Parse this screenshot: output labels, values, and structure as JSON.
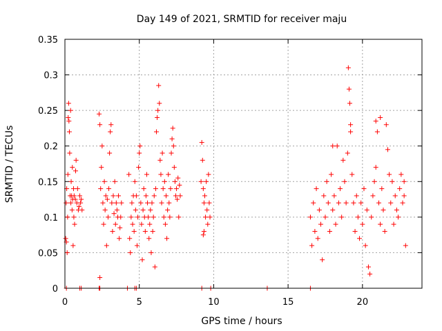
{
  "chart_data": {
    "type": "scatter",
    "title": "Day 149 of 2021, SRMTID for receiver maju",
    "xlabel": "GPS time / hours",
    "ylabel": "SRMTID / TECUs",
    "xlim": [
      0,
      24
    ],
    "ylim": [
      0,
      0.35
    ],
    "xticks": [
      0,
      5,
      10,
      15,
      20
    ],
    "yticks": [
      0,
      0.05,
      0.1,
      0.15,
      0.2,
      0.25,
      0.3,
      0.35
    ],
    "x_tick_labels": [
      "0",
      "5",
      "10",
      "15",
      "20"
    ],
    "y_tick_labels": [
      "0",
      "0.05",
      "0.1",
      "0.15",
      "0.2",
      "0.25",
      "0.3",
      "0.35"
    ],
    "grid": true,
    "marker": "+",
    "color": "#ff0000",
    "series": [
      {
        "name": "SRMTID",
        "points": [
          [
            0.05,
            0.07
          ],
          [
            0.08,
            0.12
          ],
          [
            0.1,
            0.065
          ],
          [
            0.12,
            0.14
          ],
          [
            0.15,
            0.05
          ],
          [
            0.18,
            0.1
          ],
          [
            0.2,
            0.16
          ],
          [
            0.22,
            0.24
          ],
          [
            0.25,
            0.26
          ],
          [
            0.27,
            0.235
          ],
          [
            0.3,
            0.22
          ],
          [
            0.32,
            0.19
          ],
          [
            0.35,
            0.13
          ],
          [
            0.38,
            0.25
          ],
          [
            0.4,
            0.12
          ],
          [
            0.42,
            0.15
          ],
          [
            0.45,
            0.13
          ],
          [
            0.48,
            0.11
          ],
          [
            0.5,
            0.17
          ],
          [
            0.52,
            0.125
          ],
          [
            0.55,
            0.06
          ],
          [
            0.58,
            0.14
          ],
          [
            0.6,
            0.1
          ],
          [
            0.62,
            0.13
          ],
          [
            0.65,
            0.09
          ],
          [
            0.7,
            0.125
          ],
          [
            0.72,
            0.165
          ],
          [
            0.75,
            0.18
          ],
          [
            0.8,
            0.12
          ],
          [
            0.85,
            0.14
          ],
          [
            0.9,
            0.11
          ],
          [
            0.95,
            0.115
          ],
          [
            1.0,
            0.13
          ],
          [
            1.05,
            0.12
          ],
          [
            1.1,
            0.125
          ],
          [
            1.15,
            0.11
          ],
          [
            2.3,
            0.245
          ],
          [
            2.35,
            0.23
          ],
          [
            2.4,
            0.14
          ],
          [
            2.45,
            0.17
          ],
          [
            2.5,
            0.2
          ],
          [
            2.55,
            0.12
          ],
          [
            2.6,
            0.09
          ],
          [
            2.65,
            0.15
          ],
          [
            2.7,
            0.11
          ],
          [
            2.75,
            0.13
          ],
          [
            2.8,
            0.06
          ],
          [
            2.85,
            0.125
          ],
          [
            2.9,
            0.1
          ],
          [
            2.95,
            0.14
          ],
          [
            3.0,
            0.19
          ],
          [
            3.05,
            0.22
          ],
          [
            3.1,
            0.23
          ],
          [
            3.15,
            0.12
          ],
          [
            3.2,
            0.08
          ],
          [
            3.25,
            0.13
          ],
          [
            3.3,
            0.105
          ],
          [
            3.35,
            0.15
          ],
          [
            3.4,
            0.09
          ],
          [
            3.45,
            0.12
          ],
          [
            3.5,
            0.11
          ],
          [
            3.55,
            0.1
          ],
          [
            3.6,
            0.13
          ],
          [
            3.65,
            0.07
          ],
          [
            3.7,
            0.085
          ],
          [
            3.75,
            0.1
          ],
          [
            3.8,
            0.12
          ],
          [
            2.35,
            0.015
          ],
          [
            4.3,
            0.16
          ],
          [
            4.35,
            0.07
          ],
          [
            4.4,
            0.05
          ],
          [
            4.45,
            0.1
          ],
          [
            4.5,
            0.12
          ],
          [
            4.55,
            0.09
          ],
          [
            4.6,
            0.13
          ],
          [
            4.65,
            0.08
          ],
          [
            4.7,
            0.15
          ],
          [
            4.75,
            0.11
          ],
          [
            4.8,
            0.13
          ],
          [
            4.85,
            0.06
          ],
          [
            4.9,
            0.1
          ],
          [
            4.95,
            0.17
          ],
          [
            5.0,
            0.19
          ],
          [
            5.05,
            0.2
          ],
          [
            5.1,
            0.12
          ],
          [
            5.15,
            0.09
          ],
          [
            5.2,
            0.04
          ],
          [
            5.25,
            0.11
          ],
          [
            5.3,
            0.14
          ],
          [
            5.35,
            0.1
          ],
          [
            5.4,
            0.08
          ],
          [
            5.45,
            0.13
          ],
          [
            5.5,
            0.16
          ],
          [
            5.55,
            0.12
          ],
          [
            5.6,
            0.1
          ],
          [
            5.65,
            0.07
          ],
          [
            5.7,
            0.09
          ],
          [
            5.75,
            0.11
          ],
          [
            5.8,
            0.05
          ],
          [
            5.85,
            0.12
          ],
          [
            5.9,
            0.08
          ],
          [
            5.95,
            0.1
          ],
          [
            6.0,
            0.13
          ],
          [
            6.05,
            0.03
          ],
          [
            6.1,
            0.14
          ],
          [
            6.15,
            0.22
          ],
          [
            6.2,
            0.24
          ],
          [
            6.25,
            0.25
          ],
          [
            6.3,
            0.285
          ],
          [
            6.35,
            0.26
          ],
          [
            6.4,
            0.18
          ],
          [
            6.45,
            0.16
          ],
          [
            6.5,
            0.12
          ],
          [
            6.55,
            0.19
          ],
          [
            6.6,
            0.14
          ],
          [
            6.65,
            0.1
          ],
          [
            6.7,
            0.15
          ],
          [
            6.75,
            0.09
          ],
          [
            6.8,
            0.13
          ],
          [
            6.85,
            0.07
          ],
          [
            6.9,
            0.11
          ],
          [
            6.95,
            0.16
          ],
          [
            7.0,
            0.12
          ],
          [
            7.05,
            0.1
          ],
          [
            7.1,
            0.14
          ],
          [
            7.15,
            0.19
          ],
          [
            7.2,
            0.21
          ],
          [
            7.25,
            0.225
          ],
          [
            7.3,
            0.2
          ],
          [
            7.35,
            0.17
          ],
          [
            7.4,
            0.15
          ],
          [
            7.45,
            0.13
          ],
          [
            7.5,
            0.14
          ],
          [
            7.55,
            0.125
          ],
          [
            7.6,
            0.155
          ],
          [
            7.65,
            0.1
          ],
          [
            7.7,
            0.145
          ],
          [
            7.75,
            0.13
          ],
          [
            9.15,
            0.15
          ],
          [
            9.2,
            0.205
          ],
          [
            9.25,
            0.18
          ],
          [
            9.3,
            0.14
          ],
          [
            9.35,
            0.12
          ],
          [
            9.4,
            0.13
          ],
          [
            9.45,
            0.1
          ],
          [
            9.5,
            0.15
          ],
          [
            9.55,
            0.11
          ],
          [
            9.6,
            0.09
          ],
          [
            9.65,
            0.16
          ],
          [
            9.7,
            0.12
          ],
          [
            9.75,
            0.1
          ],
          [
            9.3,
            0.075
          ],
          [
            9.35,
            0.08
          ],
          [
            16.5,
            0.1
          ],
          [
            16.6,
            0.06
          ],
          [
            16.7,
            0.12
          ],
          [
            16.8,
            0.08
          ],
          [
            16.9,
            0.14
          ],
          [
            17.0,
            0.07
          ],
          [
            17.1,
            0.11
          ],
          [
            17.2,
            0.09
          ],
          [
            17.3,
            0.04
          ],
          [
            17.4,
            0.13
          ],
          [
            17.5,
            0.1
          ],
          [
            17.6,
            0.15
          ],
          [
            17.7,
            0.12
          ],
          [
            17.8,
            0.08
          ],
          [
            17.9,
            0.16
          ],
          [
            18.0,
            0.11
          ],
          [
            18.1,
            0.13
          ],
          [
            18.2,
            0.09
          ],
          [
            18.3,
            0.2
          ],
          [
            18.4,
            0.12
          ],
          [
            18.5,
            0.14
          ],
          [
            18.6,
            0.1
          ],
          [
            18.7,
            0.18
          ],
          [
            18.8,
            0.15
          ],
          [
            18.9,
            0.12
          ],
          [
            19.0,
            0.19
          ],
          [
            19.05,
            0.31
          ],
          [
            19.1,
            0.28
          ],
          [
            19.15,
            0.26
          ],
          [
            19.2,
            0.23
          ],
          [
            19.3,
            0.16
          ],
          [
            19.4,
            0.12
          ],
          [
            19.5,
            0.08
          ],
          [
            19.6,
            0.13
          ],
          [
            19.7,
            0.1
          ],
          [
            19.8,
            0.07
          ],
          [
            19.9,
            0.12
          ],
          [
            20.0,
            0.09
          ],
          [
            20.1,
            0.14
          ],
          [
            20.2,
            0.06
          ],
          [
            20.3,
            0.11
          ],
          [
            20.4,
            0.03
          ],
          [
            20.5,
            0.02
          ],
          [
            20.6,
            0.1
          ],
          [
            20.7,
            0.13
          ],
          [
            20.8,
            0.15
          ],
          [
            20.9,
            0.17
          ],
          [
            21.0,
            0.22
          ],
          [
            21.1,
            0.12
          ],
          [
            21.2,
            0.09
          ],
          [
            21.3,
            0.14
          ],
          [
            21.4,
            0.11
          ],
          [
            21.5,
            0.08
          ],
          [
            21.6,
            0.23
          ],
          [
            21.7,
            0.195
          ],
          [
            21.8,
            0.16
          ],
          [
            21.9,
            0.12
          ],
          [
            22.0,
            0.15
          ],
          [
            22.1,
            0.09
          ],
          [
            22.2,
            0.13
          ],
          [
            22.3,
            0.11
          ],
          [
            22.4,
            0.1
          ],
          [
            22.5,
            0.14
          ],
          [
            22.6,
            0.16
          ],
          [
            22.7,
            0.12
          ],
          [
            22.8,
            0.13
          ],
          [
            22.9,
            0.06
          ],
          [
            22.8,
            0.15
          ],
          [
            21.2,
            0.24
          ],
          [
            20.9,
            0.235
          ],
          [
            19.2,
            0.22
          ],
          [
            18.0,
            0.2
          ],
          [
            0.1,
            0
          ],
          [
            1.0,
            0
          ],
          [
            1.1,
            0
          ],
          [
            2.3,
            0
          ],
          [
            2.35,
            0
          ],
          [
            4.2,
            0
          ],
          [
            4.7,
            0
          ],
          [
            4.8,
            0
          ],
          [
            9.2,
            0
          ],
          [
            9.8,
            0
          ],
          [
            13.6,
            0
          ],
          [
            16.5,
            0
          ]
        ]
      }
    ]
  }
}
